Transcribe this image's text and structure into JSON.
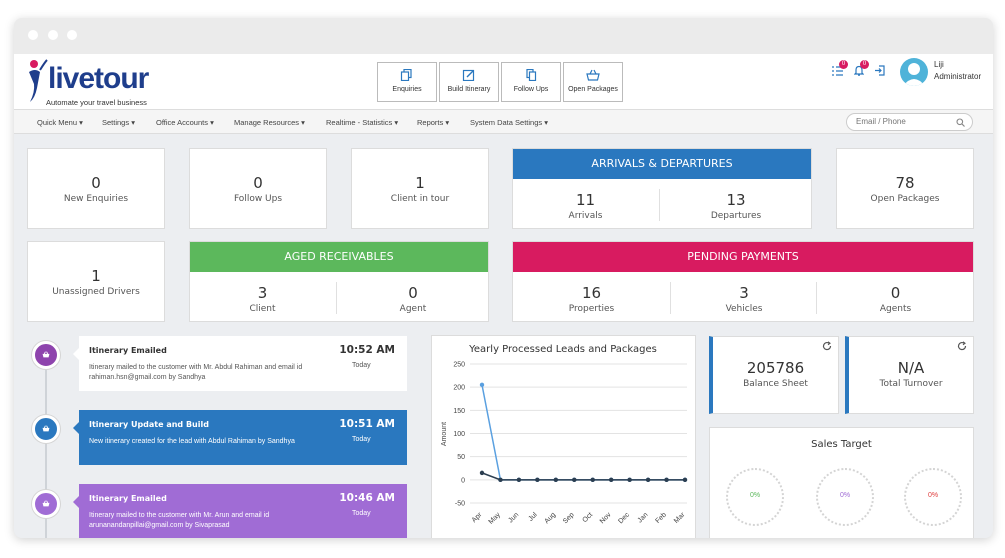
{
  "brand": {
    "name": "livetour",
    "tagline": "Automate your travel business"
  },
  "quick_actions": [
    {
      "label": "Enquiries",
      "icon": "copy-icon"
    },
    {
      "label": "Build Itinerary",
      "icon": "edit-icon"
    },
    {
      "label": "Follow Ups",
      "icon": "files-icon"
    },
    {
      "label": "Open Packages",
      "icon": "basket-icon"
    }
  ],
  "header_icons": {
    "list_badge": "0",
    "bell_badge": "0"
  },
  "user": {
    "name": "Liji",
    "role": "Administrator"
  },
  "nav": [
    "Quick Menu",
    "Settings",
    "Office Accounts",
    "Manage Resources",
    "Realtime - Statistics",
    "Reports",
    "System Data Settings"
  ],
  "search": {
    "placeholder": "Email / Phone"
  },
  "stats": {
    "new_enquiries": {
      "value": "0",
      "label": "New Enquiries"
    },
    "follow_ups": {
      "value": "0",
      "label": "Follow Ups"
    },
    "client_in_tour": {
      "value": "1",
      "label": "Client in tour"
    },
    "open_packages": {
      "value": "78",
      "label": "Open Packages"
    },
    "unassigned_drivers": {
      "value": "1",
      "label": "Unassigned Drivers"
    }
  },
  "arrivals": {
    "title": "ARRIVALS & DEPARTURES",
    "arrivals": {
      "value": "11",
      "label": "Arrivals"
    },
    "departures": {
      "value": "13",
      "label": "Departures"
    }
  },
  "aged_receivables": {
    "title": "AGED RECEIVABLES",
    "client": {
      "value": "3",
      "label": "Client"
    },
    "agent": {
      "value": "0",
      "label": "Agent"
    }
  },
  "pending_payments": {
    "title": "PENDING PAYMENTS",
    "properties": {
      "value": "16",
      "label": "Properties"
    },
    "vehicles": {
      "value": "3",
      "label": "Vehicles"
    },
    "agents": {
      "value": "0",
      "label": "Agents"
    }
  },
  "timeline": [
    {
      "title": "Itinerary Emailed",
      "time": "10:52 AM",
      "day": "Today",
      "body": "Itinerary mailed to the customer with Mr. Abdul Rahiman and email id rahiman.hsn@gmail.com by Sandhya"
    },
    {
      "title": "Itinerary Update and Build",
      "time": "10:51 AM",
      "day": "Today",
      "body": "New itinerary created for the lead with Abdul Rahiman by Sandhya"
    },
    {
      "title": "Itinerary Emailed",
      "time": "10:46 AM",
      "day": "Today",
      "body": "Itinerary mailed to the customer with Mr. Arun and email id arunanandanpillai@gmail.com by Sivaprasad"
    }
  ],
  "chart_data": {
    "type": "line",
    "title": "Yearly Processed Leads and Packages",
    "ylabel": "Amount",
    "xlabel": "",
    "ylim": [
      -50,
      250
    ],
    "yticks": [
      -50,
      0,
      50,
      100,
      150,
      200,
      250
    ],
    "categories": [
      "Apr",
      "May",
      "Jun",
      "Jul",
      "Aug",
      "Sep",
      "Oct",
      "Nov",
      "Dec",
      "Jan",
      "Feb",
      "Mar"
    ],
    "grid": true,
    "series": [
      {
        "values": [
          205,
          0,
          0,
          0,
          0,
          0,
          0,
          0,
          0,
          0,
          0,
          0
        ],
        "color": "#5aa0e0"
      },
      {
        "values": [
          15,
          0,
          0,
          0,
          0,
          0,
          0,
          0,
          0,
          0,
          0,
          0
        ],
        "color": "#2c3e50"
      }
    ]
  },
  "balance_sheet": {
    "value": "205786",
    "label": "Balance Sheet"
  },
  "total_turnover": {
    "value": "N/A",
    "label": "Total Turnover"
  },
  "sales_target": {
    "title": "Sales Target",
    "gauges": [
      {
        "value": "0%",
        "color": "#5cb85c"
      },
      {
        "value": "0%",
        "color": "#a06cd5"
      },
      {
        "value": "0%",
        "color": "#e04040"
      }
    ]
  },
  "colors": {
    "blue": "#2a78bf",
    "green": "#5cb85c",
    "pink": "#d81b60",
    "purple": "#a06cd5",
    "dark_purple": "#8e44ad"
  }
}
